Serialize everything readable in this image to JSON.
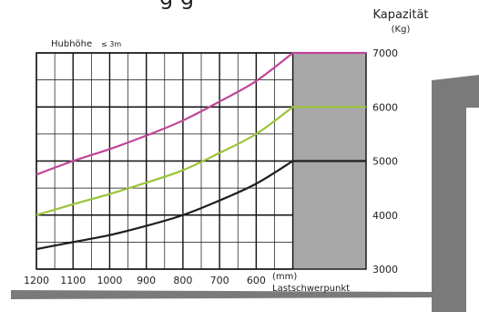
{
  "header": {
    "title_partial": "g    g"
  },
  "chart_data": {
    "type": "line",
    "title": "",
    "capacity_label": "Kapazität",
    "capacity_unit": "(Kg)",
    "height_label": "Hubhöhe",
    "height_note": "≤ 3m",
    "x_unit": "(mm)",
    "x_label": "Lastschwerpunkt",
    "x_ticks": [
      "1200",
      "1100",
      "1000",
      "900",
      "800",
      "700",
      "600"
    ],
    "x_tick_values": [
      1200,
      1100,
      1000,
      900,
      800,
      700,
      600
    ],
    "x_range": [
      1200,
      300
    ],
    "y_ticks": [
      "7000",
      "6000",
      "5000",
      "4000",
      "3000"
    ],
    "y_tick_values": [
      7000,
      6000,
      5000,
      4000,
      3000
    ],
    "ylim": [
      3000,
      7000
    ],
    "shaded_region_x": [
      500,
      300
    ],
    "grid": true,
    "series": [
      {
        "color": "#c2459a",
        "x": [
          1200,
          1100,
          1000,
          900,
          800,
          700,
          600,
          500,
          300
        ],
        "values": [
          4750,
          5000,
          5220,
          5470,
          5750,
          6100,
          6480,
          7000,
          7000
        ]
      },
      {
        "color": "#9ac43a",
        "x": [
          1200,
          1100,
          1000,
          900,
          800,
          700,
          600,
          500,
          300
        ],
        "values": [
          4000,
          4200,
          4390,
          4600,
          4830,
          5150,
          5500,
          6000,
          6000
        ]
      },
      {
        "color": "#1e1e1e",
        "x": [
          1200,
          1100,
          1000,
          900,
          800,
          700,
          600,
          500,
          300
        ],
        "values": [
          3370,
          3500,
          3630,
          3800,
          4000,
          4270,
          4580,
          5000,
          5000
        ]
      }
    ]
  }
}
